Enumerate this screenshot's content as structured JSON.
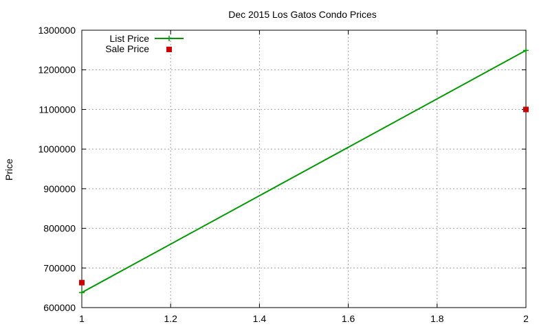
{
  "chart_data": {
    "type": "line",
    "title": "Dec 2015 Los Gatos Condo Prices",
    "xlabel": "",
    "ylabel": "Price",
    "xlim": [
      1,
      2
    ],
    "ylim": [
      600000,
      1300000
    ],
    "xticks": [
      1,
      1.2,
      1.4,
      1.6,
      1.8,
      2
    ],
    "xtick_labels": [
      "1",
      "1.2",
      "1.4",
      "1.6",
      "1.8",
      "2"
    ],
    "yticks": [
      600000,
      700000,
      800000,
      900000,
      1000000,
      1100000,
      1200000,
      1300000
    ],
    "ytick_labels": [
      "600000",
      "700000",
      "800000",
      "900000",
      "1000000",
      "1100000",
      "1200000",
      "1300000"
    ],
    "grid": true,
    "legend_position": "top-left",
    "series": [
      {
        "name": "List Price",
        "style": "line-with-plus",
        "color": "#009900",
        "x": [
          1,
          2
        ],
        "y": [
          638000,
          1249000
        ]
      },
      {
        "name": "Sale Price",
        "style": "square-points",
        "color": "#cc0000",
        "x": [
          1,
          2
        ],
        "y": [
          663000,
          1100000
        ]
      }
    ]
  }
}
